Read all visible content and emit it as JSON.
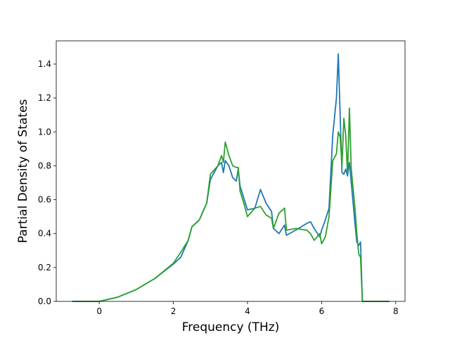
{
  "chart_data": {
    "type": "line",
    "xlabel": "Frequency (THz)",
    "ylabel": "Partial Density of States",
    "x": [
      -0.73,
      0,
      0.5,
      1,
      1.5,
      2,
      2.2,
      2.4,
      2.5,
      2.7,
      2.9,
      3.0,
      3.2,
      3.3,
      3.35,
      3.4,
      3.5,
      3.6,
      3.7,
      3.75,
      3.8,
      3.9,
      4.0,
      4.2,
      4.35,
      4.5,
      4.65,
      4.7,
      4.85,
      5.0,
      5.05,
      5.3,
      5.6,
      5.7,
      5.8,
      5.95,
      6.0,
      6.1,
      6.2,
      6.3,
      6.4,
      6.45,
      6.5,
      6.55,
      6.6,
      6.65,
      6.7,
      6.75,
      6.8,
      6.9,
      6.95,
      7.0,
      7.05,
      7.1,
      7.83
    ],
    "series": [
      {
        "color": "#1f77b4",
        "values": [
          0,
          0,
          0.025,
          0.07,
          0.135,
          0.22,
          0.26,
          0.36,
          0.44,
          0.48,
          0.58,
          0.72,
          0.8,
          0.82,
          0.76,
          0.83,
          0.8,
          0.73,
          0.71,
          0.78,
          0.68,
          0.61,
          0.54,
          0.55,
          0.66,
          0.58,
          0.53,
          0.43,
          0.4,
          0.45,
          0.39,
          0.42,
          0.46,
          0.47,
          0.43,
          0.38,
          0.42,
          0.48,
          0.55,
          0.98,
          1.2,
          1.46,
          1.1,
          0.76,
          0.75,
          0.78,
          0.74,
          0.82,
          0.7,
          0.46,
          0.35,
          0.33,
          0.35,
          0,
          0
        ]
      },
      {
        "color": "#2ca02c",
        "values": [
          0,
          0,
          0.025,
          0.07,
          0.135,
          0.225,
          0.29,
          0.36,
          0.44,
          0.48,
          0.58,
          0.75,
          0.8,
          0.86,
          0.82,
          0.94,
          0.86,
          0.8,
          0.79,
          0.79,
          0.65,
          0.58,
          0.5,
          0.55,
          0.56,
          0.51,
          0.49,
          0.43,
          0.52,
          0.55,
          0.42,
          0.43,
          0.42,
          0.4,
          0.36,
          0.4,
          0.34,
          0.38,
          0.5,
          0.83,
          0.87,
          1.0,
          0.97,
          0.8,
          1.08,
          0.98,
          0.75,
          1.14,
          0.78,
          0.55,
          0.4,
          0.28,
          0.26,
          0,
          0
        ]
      }
    ],
    "xlim": [
      -1.16,
      8.25
    ],
    "ylim": [
      0,
      1.537
    ],
    "xticks": [
      0,
      2,
      4,
      6,
      8
    ],
    "yticks": [
      {
        "value": 0,
        "label": "0.0"
      },
      0.2,
      0.4,
      0.6,
      0.8,
      {
        "value": 1,
        "label": "1.0"
      },
      1.2,
      1.4
    ]
  }
}
